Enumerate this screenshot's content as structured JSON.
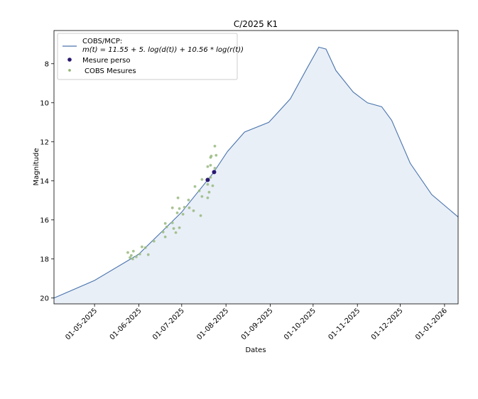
{
  "chart_data": {
    "type": "line",
    "title": "C/2025 K1",
    "xlabel": "Dates",
    "ylabel": "Magnitude",
    "x_units": "days since 01-05-2025",
    "xlim": [
      -28.4,
      254.5
    ],
    "ylim": [
      20.3,
      6.3
    ],
    "y_inverted": true,
    "grid": false,
    "legend_position": "top-left",
    "x_ticks": [
      {
        "value": 0,
        "label": "01-05-2025"
      },
      {
        "value": 31,
        "label": "01-06-2025"
      },
      {
        "value": 61,
        "label": "01-07-2025"
      },
      {
        "value": 92,
        "label": "01-08-2025"
      },
      {
        "value": 123,
        "label": "01-09-2025"
      },
      {
        "value": 153,
        "label": "01-10-2025"
      },
      {
        "value": 184,
        "label": "01-11-2025"
      },
      {
        "value": 214,
        "label": "01-12-2025"
      },
      {
        "value": 245,
        "label": "01-01-2026"
      }
    ],
    "y_ticks": [
      {
        "value": 8,
        "label": "8"
      },
      {
        "value": 10,
        "label": "10"
      },
      {
        "value": 12,
        "label": "12"
      },
      {
        "value": 14,
        "label": "14"
      },
      {
        "value": 16,
        "label": "16"
      },
      {
        "value": 18,
        "label": "18"
      },
      {
        "value": 20,
        "label": "20"
      }
    ],
    "series": [
      {
        "name": "COBS/MCP:",
        "formula": "m(t) = 11.55 + 5. log(d(t)) + 10.56 * log(r(t))",
        "type": "line",
        "color": "#4a74ad",
        "fill": "#e9eff7",
        "x": [
          -28.4,
          0,
          31,
          61,
          83,
          93,
          105,
          122,
          137,
          149,
          157,
          162,
          169,
          181,
          191,
          201,
          208,
          221,
          236,
          254.5
        ],
        "y": [
          20.0,
          19.1,
          17.75,
          15.6,
          13.6,
          12.5,
          11.5,
          11.0,
          9.8,
          8.2,
          7.15,
          7.25,
          8.35,
          9.45,
          10.0,
          10.2,
          10.9,
          13.1,
          14.7,
          15.85
        ]
      },
      {
        "name": "Mesure perso",
        "type": "scatter",
        "color": "#2a1870",
        "x": [
          79.2,
          83.7
        ],
        "y": [
          13.95,
          13.55
        ]
      },
      {
        "name": "COBS Mesures",
        "type": "scatter",
        "color": "#8db573",
        "x": [
          84.2,
          81.7,
          85.1,
          81.2,
          79.2,
          81.2,
          84.2,
          75.2,
          81.2,
          79.2,
          82.7,
          70.3,
          73.3,
          80.2,
          75.2,
          79.2,
          58.4,
          65.8,
          54.5,
          59.4,
          62.9,
          66.3,
          57.9,
          61.9,
          69.3,
          74.3,
          49.5,
          54.5,
          50.5,
          55.4,
          59.4,
          48.0,
          49.5,
          56.9,
          41.6,
          33.2,
          35.6,
          23.3,
          27.2,
          25.7,
          29.2,
          31.7,
          37.6,
          24.8,
          26.7
        ],
        "y": [
          12.22,
          12.73,
          12.69,
          12.8,
          13.27,
          13.2,
          13.35,
          13.93,
          13.82,
          14.18,
          14.25,
          14.29,
          14.51,
          14.58,
          14.8,
          14.87,
          14.87,
          14.98,
          15.38,
          15.42,
          15.35,
          15.38,
          15.64,
          15.71,
          15.53,
          15.78,
          16.18,
          16.15,
          16.36,
          16.44,
          16.4,
          16.62,
          16.87,
          16.65,
          17.09,
          17.38,
          17.42,
          17.67,
          17.6,
          17.82,
          17.89,
          17.75,
          17.78,
          17.93,
          18.0
        ]
      }
    ]
  }
}
